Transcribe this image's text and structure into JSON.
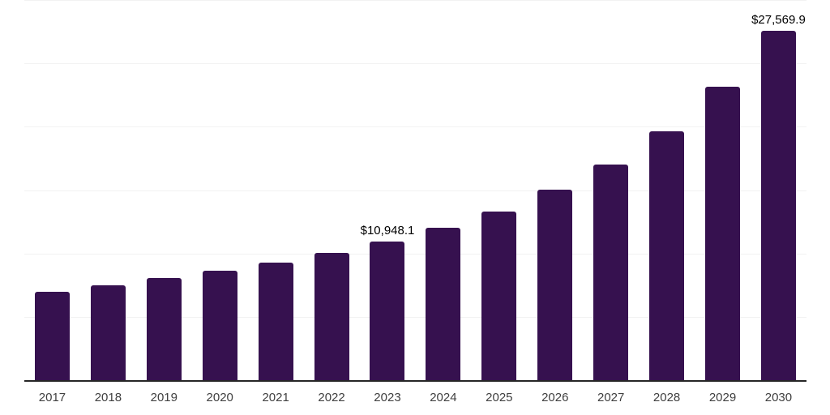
{
  "chart_data": {
    "type": "bar",
    "title": "",
    "xlabel": "",
    "ylabel": "",
    "categories": [
      "2017",
      "2018",
      "2019",
      "2020",
      "2021",
      "2022",
      "2023",
      "2024",
      "2025",
      "2026",
      "2027",
      "2028",
      "2029",
      "2030"
    ],
    "values": [
      7000,
      7510,
      8050,
      8630,
      9260,
      10030,
      10948.1,
      12040,
      13320,
      15020,
      17030,
      19650,
      23130,
      27569.9
    ],
    "value_labels": {
      "2023": "$10,948.1",
      "2030": "$27,569.9"
    },
    "ylim": [
      0,
      30000
    ],
    "gridline_values": [
      5000,
      10000,
      15000,
      20000,
      25000,
      30000
    ],
    "grid": "horizontal",
    "y_axis_tick_labels": "hidden",
    "legend": "none"
  },
  "style": {
    "background": "#ffffff",
    "bar_color": "#36114f",
    "axis_line_color": "#262626",
    "gridline_color": "#f2f2f2",
    "value_label_color": "#000000",
    "tick_label_color": "#404040"
  }
}
